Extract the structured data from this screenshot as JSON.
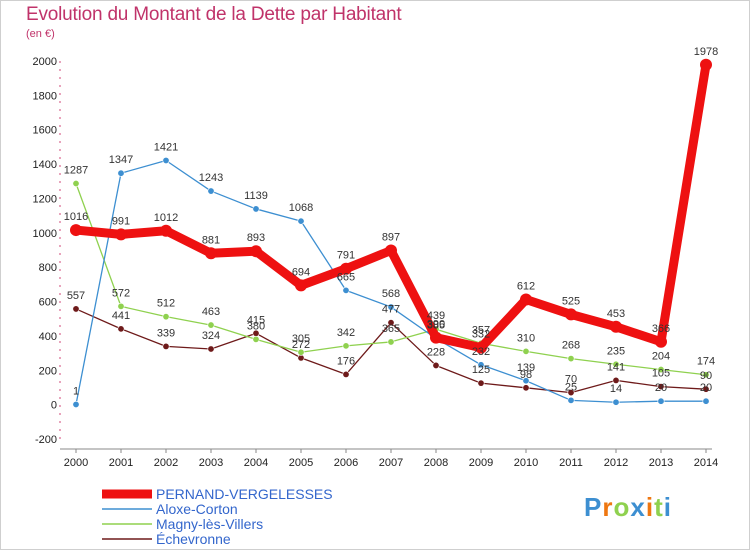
{
  "title": "Evolution du Montant de la Dette par Habitant",
  "subtitle": "(en €)",
  "logo": "Proxiti",
  "chart_data": {
    "type": "line",
    "x": [
      "2000",
      "2001",
      "2002",
      "2003",
      "2004",
      "2005",
      "2006",
      "2007",
      "2008",
      "2009",
      "2010",
      "2011",
      "2012",
      "2013",
      "2014"
    ],
    "ylim": [
      -200,
      2000
    ],
    "yticks": [
      -200,
      0,
      200,
      400,
      600,
      800,
      1000,
      1200,
      1400,
      1600,
      1800,
      2000
    ],
    "grid": false,
    "legend": "bottom-left",
    "series": [
      {
        "name": "Échevronne",
        "color": "#6e1a1a",
        "values": [
          557,
          441,
          339,
          324,
          415,
          272,
          176,
          477,
          228,
          125,
          98,
          70,
          141,
          105,
          90
        ]
      },
      {
        "name": "Magny-lès-Villers",
        "color": "#8fd14f",
        "values": [
          1287,
          572,
          512,
          463,
          380,
          305,
          342,
          365,
          439,
          357,
          310,
          268,
          235,
          204,
          174
        ]
      },
      {
        "name": "Aloxe-Corton",
        "color": "#3d8fd1",
        "values": [
          1,
          1347,
          1421,
          1243,
          1139,
          1068,
          665,
          568,
          385,
          232,
          139,
          25,
          14,
          20,
          20
        ]
      },
      {
        "name": "PERNAND-VERGELESSES",
        "color": "#ee1111",
        "values": [
          1016,
          991,
          1012,
          881,
          893,
          694,
          791,
          897,
          390,
          332,
          612,
          525,
          453,
          366,
          1978
        ]
      }
    ]
  }
}
